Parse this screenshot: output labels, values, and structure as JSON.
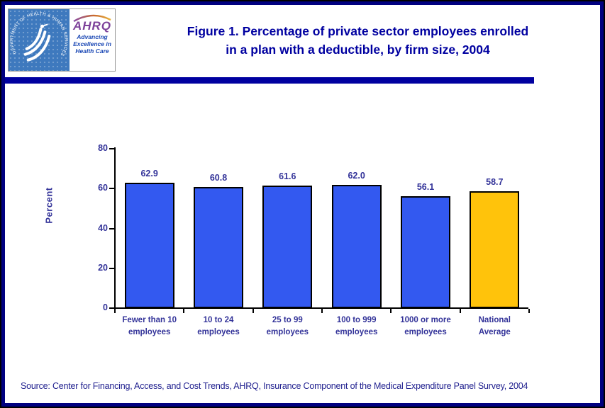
{
  "header": {
    "logo": {
      "seal_text": "DEPARTMENT OF HEALTH & HUMAN SERVICES · USA",
      "agency": "AHRQ",
      "tagline_lines": [
        "Advancing",
        "Excellence in",
        "Health Care"
      ]
    },
    "title_lines": [
      "Figure 1. Percentage of private sector employees enrolled",
      "in a plan with a deductible, by firm size, 2004"
    ]
  },
  "chart_data": {
    "type": "bar",
    "title": "Figure 1. Percentage of private sector employees enrolled in a plan with a deductible, by firm size, 2004",
    "categories": [
      "Fewer than 10 employees",
      "10 to 24 employees",
      "25 to 99 employees",
      "100 to 999 employees",
      "1000 or more employees",
      "National Average"
    ],
    "category_lines": [
      [
        "Fewer than 10",
        "employees"
      ],
      [
        "10 to 24",
        "employees"
      ],
      [
        "25 to 99",
        "employees"
      ],
      [
        "100 to 999",
        "employees"
      ],
      [
        "1000 or more",
        "employees"
      ],
      [
        "National",
        "Average"
      ]
    ],
    "values": [
      62.9,
      60.8,
      61.6,
      62.0,
      56.1,
      58.7
    ],
    "value_labels": [
      "62.9",
      "60.8",
      "61.6",
      "62.0",
      "56.1",
      "58.7"
    ],
    "xlabel": "",
    "ylabel": "Percent",
    "ylim": [
      0,
      80
    ],
    "yticks": [
      0,
      20,
      40,
      60,
      80
    ],
    "grid": false,
    "legend": false,
    "bar_colors": [
      "#3359F0",
      "#3359F0",
      "#3359F0",
      "#3359F0",
      "#3359F0",
      "#FFC30B"
    ]
  },
  "footer": {
    "source": "Source: Center for Financing, Access, and Cost Trends, AHRQ, Insurance Component of the Medical Expenditure Panel Survey, 2004"
  },
  "colors": {
    "frame_navy": "#000080",
    "title_navy": "#0000A0",
    "label_navy": "#333399",
    "bar_blue": "#3359F0",
    "bar_gold": "#FFC30B",
    "seal_blue": "#3E79BE",
    "ahrq_purple": "#7C4099"
  }
}
